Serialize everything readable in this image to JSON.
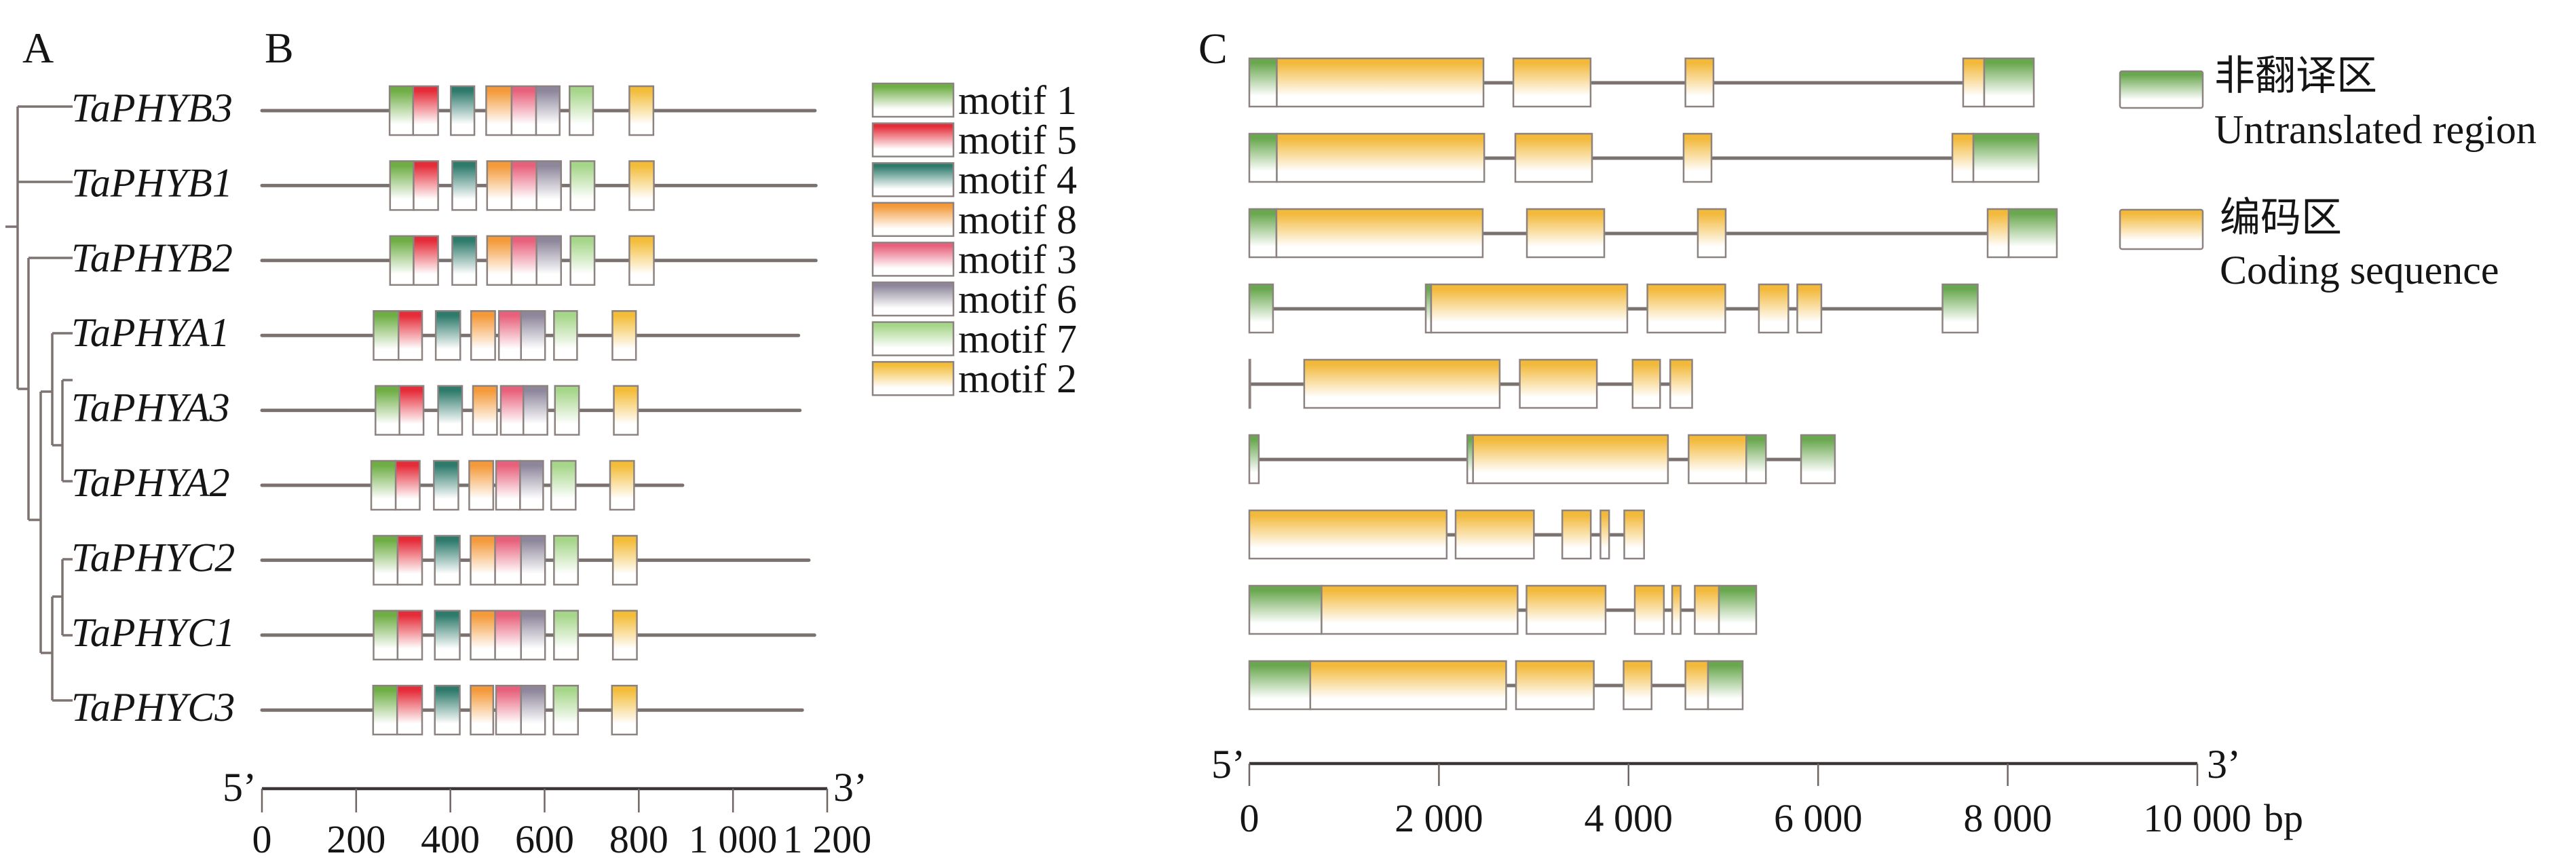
{
  "figure": {
    "panel_labels": {
      "a": "A",
      "b": "B",
      "c": "C"
    }
  },
  "tree": {
    "leaves": [
      "TaPHYB3",
      "TaPHYB1",
      "TaPHYB2",
      "TaPHYA1",
      "TaPHYA3",
      "TaPHYA2",
      "TaPHYC2",
      "TaPHYC1",
      "TaPHYC3"
    ],
    "topology": [
      0,
      1,
      [
        2,
        [
          [
            3,
            [
              4,
              5
            ]
          ],
          [
            [
              6,
              7
            ],
            8
          ]
        ]
      ]
    ]
  },
  "chart_data": [
    {
      "type": "bar",
      "orientation": "horizontal-ranges",
      "xlim": [
        0,
        1200
      ],
      "ticks": [
        0,
        200,
        400,
        600,
        800,
        1000,
        1200
      ],
      "tick_labels": [
        "0",
        "200",
        "400",
        "600",
        "800",
        "1 000",
        "1 200"
      ],
      "end_labels": {
        "left": "5’",
        "right": "3’"
      },
      "grid": false,
      "legend_position": "right",
      "legend": [
        {
          "label": "motif 1",
          "color": "#6fae45"
        },
        {
          "label": "motif 5",
          "color": "#e52d3a"
        },
        {
          "label": "motif 4",
          "color": "#2e7b6c"
        },
        {
          "label": "motif 8",
          "color": "#f49a3a"
        },
        {
          "label": "motif 3",
          "color": "#e8617c"
        },
        {
          "label": "motif 6",
          "color": "#8e879c"
        },
        {
          "label": "motif 7",
          "color": "#a6d68a"
        },
        {
          "label": "motif 2",
          "color": "#f3bd3a"
        }
      ],
      "series": [
        {
          "gene_index": 0,
          "length": 1174,
          "motifs": [
            [
              0,
              271,
              321
            ],
            [
              1,
              321,
              374
            ],
            [
              2,
              401,
              451
            ],
            [
              3,
              476,
              530
            ],
            [
              4,
              530,
              582
            ],
            [
              5,
              582,
              632
            ],
            [
              6,
              653,
              703
            ],
            [
              7,
              780,
              831
            ]
          ]
        },
        {
          "gene_index": 1,
          "length": 1176,
          "motifs": [
            [
              0,
              272,
              322
            ],
            [
              1,
              322,
              374
            ],
            [
              2,
              404,
              455
            ],
            [
              3,
              478,
              530
            ],
            [
              4,
              530,
              583
            ],
            [
              5,
              583,
              635
            ],
            [
              6,
              655,
              706
            ],
            [
              7,
              780,
              832
            ]
          ]
        },
        {
          "gene_index": 2,
          "length": 1176,
          "motifs": [
            [
              0,
              272,
              322
            ],
            [
              1,
              322,
              374
            ],
            [
              2,
              404,
              455
            ],
            [
              3,
              478,
              530
            ],
            [
              4,
              530,
              583
            ],
            [
              5,
              583,
              635
            ],
            [
              6,
              655,
              706
            ],
            [
              7,
              780,
              832
            ]
          ]
        },
        {
          "gene_index": 3,
          "length": 1139,
          "motifs": [
            [
              0,
              237,
              290
            ],
            [
              1,
              290,
              340
            ],
            [
              2,
              369,
              421
            ],
            [
              3,
              444,
              495
            ],
            [
              4,
              503,
              550
            ],
            [
              5,
              550,
              601
            ],
            [
              6,
              620,
              669
            ],
            [
              7,
              744,
              794
            ]
          ]
        },
        {
          "gene_index": 4,
          "length": 1142,
          "motifs": [
            [
              0,
              241,
              292
            ],
            [
              1,
              292,
              343
            ],
            [
              2,
              374,
              425
            ],
            [
              3,
              448,
              499
            ],
            [
              4,
              507,
              555
            ],
            [
              5,
              555,
              606
            ],
            [
              6,
              622,
              673
            ],
            [
              7,
              747,
              798
            ]
          ]
        },
        {
          "gene_index": 5,
          "length": 893,
          "motifs": [
            [
              0,
              232,
              284
            ],
            [
              1,
              284,
              335
            ],
            [
              2,
              365,
              417
            ],
            [
              3,
              440,
              491
            ],
            [
              4,
              497,
              548
            ],
            [
              5,
              548,
              597
            ],
            [
              6,
              614,
              666
            ],
            [
              7,
              739,
              790
            ]
          ]
        },
        {
          "gene_index": 6,
          "length": 1161,
          "motifs": [
            [
              0,
              237,
              288
            ],
            [
              1,
              288,
              340
            ],
            [
              2,
              367,
              420
            ],
            [
              3,
              443,
              495
            ],
            [
              4,
              495,
              550
            ],
            [
              5,
              550,
              601
            ],
            [
              6,
              620,
              671
            ],
            [
              7,
              745,
              796
            ]
          ]
        },
        {
          "gene_index": 7,
          "length": 1173,
          "motifs": [
            [
              0,
              237,
              288
            ],
            [
              1,
              288,
              340
            ],
            [
              2,
              367,
              420
            ],
            [
              3,
              443,
              495
            ],
            [
              4,
              495,
              550
            ],
            [
              5,
              550,
              601
            ],
            [
              6,
              620,
              671
            ],
            [
              7,
              745,
              796
            ]
          ]
        },
        {
          "gene_index": 8,
          "length": 1147,
          "motifs": [
            [
              0,
              236,
              287
            ],
            [
              1,
              287,
              340
            ],
            [
              2,
              367,
              420
            ],
            [
              3,
              443,
              491
            ],
            [
              4,
              497,
              550
            ],
            [
              5,
              550,
              601
            ],
            [
              6,
              619,
              671
            ],
            [
              7,
              743,
              796
            ]
          ]
        }
      ]
    },
    {
      "type": "bar",
      "orientation": "horizontal-ranges",
      "xlim": [
        0,
        10000
      ],
      "ticks": [
        0,
        2000,
        4000,
        6000,
        8000,
        10000
      ],
      "tick_labels": [
        "0",
        "2 000",
        "4 000",
        "6 000",
        "8 000",
        "10 000"
      ],
      "unit": "bp",
      "end_labels": {
        "left": "5’",
        "right": "3’"
      },
      "grid": false,
      "legend_position": "top-right",
      "legend": [
        {
          "label_cn": "非翻译区",
          "label_en": "Untranslated region",
          "color": "#6aa84f"
        },
        {
          "label_cn": "编码区",
          "label_en": "Coding sequence",
          "color": "#f2b93b"
        }
      ],
      "rows": [
        {
          "segments": [
            [
              0,
              0,
              290
            ],
            [
              1,
              290,
              2470
            ],
            [
              1,
              2785,
              3600
            ],
            [
              1,
              4600,
              4896
            ],
            [
              1,
              7530,
              7752
            ],
            [
              0,
              7752,
              8275
            ]
          ]
        },
        {
          "segments": [
            [
              0,
              0,
              290
            ],
            [
              1,
              290,
              2478
            ],
            [
              1,
              2806,
              3615
            ],
            [
              1,
              4581,
              4875
            ],
            [
              1,
              7416,
              7638
            ],
            [
              0,
              7638,
              8325
            ]
          ]
        },
        {
          "segments": [
            [
              0,
              0,
              286
            ],
            [
              1,
              286,
              2462
            ],
            [
              1,
              2928,
              3744
            ],
            [
              1,
              4731,
              5025
            ],
            [
              1,
              7788,
              8010
            ],
            [
              0,
              8010,
              8518
            ]
          ]
        },
        {
          "segments": [
            [
              0,
              0,
              250
            ],
            [
              0,
              1861,
              1918
            ],
            [
              1,
              1918,
              3987
            ],
            [
              1,
              4199,
              5021
            ],
            [
              1,
              5375,
              5686
            ],
            [
              1,
              5780,
              6034
            ],
            [
              0,
              7312,
              7684
            ]
          ]
        },
        {
          "segments": [
            [
              0,
              0,
              10
            ],
            [
              1,
              579,
              2641
            ],
            [
              1,
              2853,
              3666
            ],
            [
              1,
              4043,
              4333
            ],
            [
              1,
              4440,
              4671
            ]
          ]
        },
        {
          "segments": [
            [
              0,
              0,
              100
            ],
            [
              0,
              2299,
              2360
            ],
            [
              1,
              2360,
              4416
            ],
            [
              1,
              4634,
              5242
            ],
            [
              0,
              5242,
              5449
            ],
            [
              0,
              5820,
              6177
            ]
          ]
        },
        {
          "segments": [
            [
              1,
              0,
              2082
            ],
            [
              1,
              2176,
              3002
            ],
            [
              1,
              3301,
              3602
            ],
            [
              1,
              3704,
              3795
            ],
            [
              1,
              3955,
              4164
            ]
          ]
        },
        {
          "segments": [
            [
              0,
              0,
              762
            ],
            [
              1,
              762,
              2830
            ],
            [
              1,
              2924,
              3758
            ],
            [
              1,
              4066,
              4373
            ],
            [
              1,
              4460,
              4550
            ],
            [
              1,
              4699,
              4954
            ],
            [
              0,
              4954,
              5347
            ]
          ]
        },
        {
          "segments": [
            [
              0,
              0,
              643
            ],
            [
              1,
              643,
              2709
            ],
            [
              1,
              2813,
              3634
            ],
            [
              1,
              3948,
              4243
            ],
            [
              1,
              4600,
              4839
            ],
            [
              0,
              4839,
              5204
            ]
          ]
        }
      ]
    }
  ]
}
